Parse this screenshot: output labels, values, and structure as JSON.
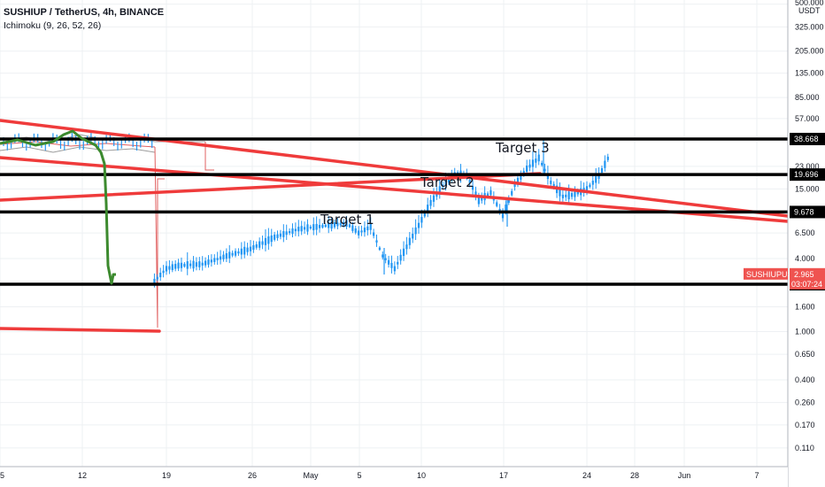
{
  "header": {
    "title": "SUSHIUP / TetherUS, 4h, BINANCE",
    "indicator": "Ichimoku (9, 26, 52, 26)"
  },
  "colors": {
    "trendline": "#ef3b3b",
    "level": "#000000",
    "candle": "#2196f3",
    "ichimoku_lagging": "#3c8a2e",
    "ichimoku_base": "#e06060",
    "ichimoku_cloud": "#9c9c9c",
    "price_tag": "#ef5350"
  },
  "price_axis": {
    "unit_label": "USDT",
    "ticks": [
      "500.000",
      "325.000",
      "205.000",
      "135.000",
      "85.000",
      "57.000",
      "23.000",
      "15.000",
      "6.500",
      "4.000",
      "1.600",
      "1.000",
      "0.650",
      "0.400",
      "0.260",
      "0.170",
      "0.110"
    ]
  },
  "level_tags": [
    "38.668",
    "19.696",
    "9.678",
    "2.457"
  ],
  "price_tag": {
    "symbol": "SUSHIUPUSDT",
    "price": "2.965",
    "countdown": "03:07:24"
  },
  "chart_data": {
    "type": "candlestick",
    "scale": "log",
    "x_ticks": [
      "5",
      "12",
      "19",
      "26",
      "May",
      "5",
      "10",
      "17",
      "24",
      "28",
      "Jun",
      "7"
    ],
    "horizontal_levels": [
      38.668,
      19.696,
      9.678,
      2.457
    ],
    "annotations": [
      "Target 1",
      "Target 2",
      "Target 3"
    ],
    "series": [
      {
        "kind": "ohlc",
        "values": [
          {
            "x": "Apr 18",
            "close": 2.6
          },
          {
            "x": "Apr 19",
            "close": 3.3
          },
          {
            "x": "Apr 20",
            "close": 3.5
          },
          {
            "x": "Apr 22",
            "close": 3.6
          },
          {
            "x": "Apr 24",
            "close": 4.2
          },
          {
            "x": "Apr 26",
            "close": 4.8
          },
          {
            "x": "Apr 28",
            "close": 6.0
          },
          {
            "x": "Apr 30",
            "close": 7.0
          },
          {
            "x": "May 2",
            "close": 7.4
          },
          {
            "x": "May 4",
            "close": 7.8
          },
          {
            "x": "May 5",
            "close": 6.5
          },
          {
            "x": "May 6",
            "close": 7.3
          },
          {
            "x": "May 7",
            "close": 4.2
          },
          {
            "x": "May 8",
            "close": 3.3
          },
          {
            "x": "May 9",
            "close": 5.0
          },
          {
            "x": "May 10",
            "close": 7.5
          },
          {
            "x": "May 11",
            "close": 11.5
          },
          {
            "x": "May 12",
            "close": 16.0
          },
          {
            "x": "May 13",
            "close": 20.0
          },
          {
            "x": "May 14",
            "close": 19.5
          },
          {
            "x": "May 15",
            "close": 12.0
          },
          {
            "x": "May 16",
            "close": 14.0
          },
          {
            "x": "May 17",
            "close": 9.0
          },
          {
            "x": "May 18",
            "close": 16.0
          },
          {
            "x": "May 19",
            "close": 22.0
          },
          {
            "x": "May 20",
            "close": 27.0
          },
          {
            "x": "May 21",
            "close": 17.0
          },
          {
            "x": "May 22",
            "close": 13.0
          },
          {
            "x": "May 23",
            "close": 13.5
          },
          {
            "x": "May 24",
            "close": 15.0
          },
          {
            "x": "May 25",
            "close": 19.0
          },
          {
            "x": "May 26",
            "close": 30.0
          }
        ]
      }
    ]
  }
}
